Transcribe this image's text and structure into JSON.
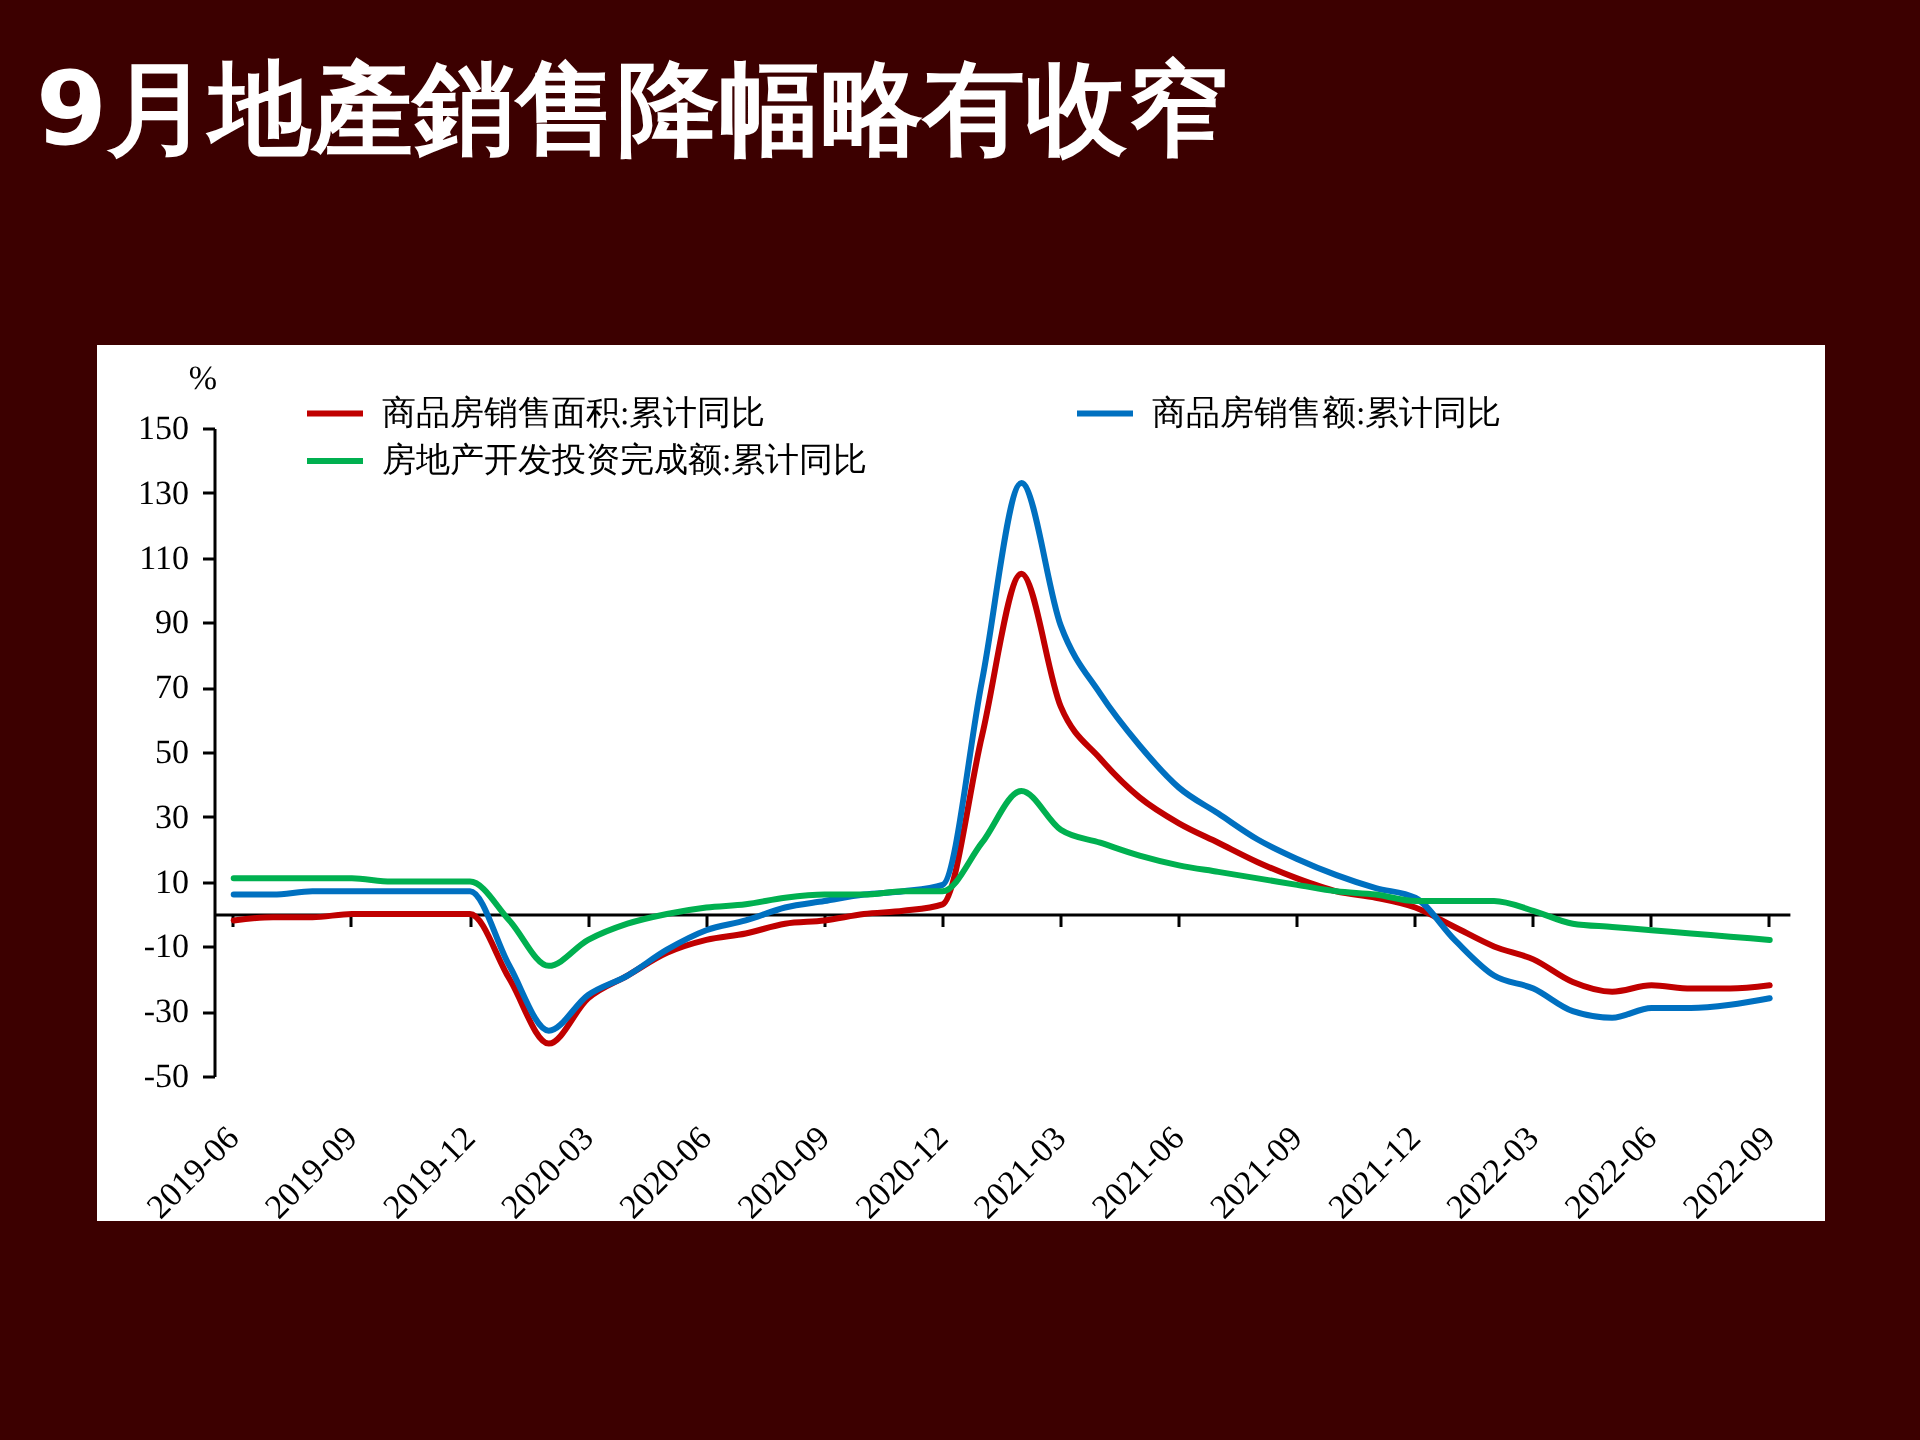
{
  "chart_data": {
    "type": "line",
    "title": "9月地產銷售降幅略有收窄",
    "ylabel": "%",
    "categories": [
      "2019-06",
      null,
      null,
      "2019-09",
      null,
      null,
      "2019-12",
      null,
      null,
      "2020-03",
      null,
      null,
      "2020-06",
      null,
      null,
      "2020-09",
      null,
      null,
      "2020-12",
      null,
      null,
      "2021-03",
      null,
      null,
      "2021-06",
      null,
      null,
      "2021-09",
      null,
      null,
      "2021-12",
      null,
      null,
      "2022-03",
      null,
      null,
      "2022-06",
      null,
      null,
      "2022-09"
    ],
    "series": [
      {
        "name": "商品房销售面积:累计同比",
        "color": "#c00000",
        "values": [
          -2,
          -1,
          -1,
          0,
          0,
          0,
          0,
          -20,
          -40,
          -26,
          -19,
          -12,
          -8,
          -6,
          -3,
          -2,
          0,
          1,
          3,
          55,
          105,
          64,
          48,
          36,
          28,
          22,
          16,
          11,
          7,
          5,
          2,
          -4,
          -10,
          -14,
          -21,
          -24,
          -22,
          -23,
          -23,
          -22
        ]
      },
      {
        "name": "商品房销售额:累计同比",
        "color": "#0070c0",
        "values": [
          6,
          6,
          7,
          7,
          7,
          7,
          7,
          -16,
          -36,
          -25,
          -19,
          -11,
          -5,
          -2,
          2,
          4,
          6,
          7,
          9,
          72,
          133,
          89,
          68,
          52,
          39,
          31,
          23,
          17,
          12,
          8,
          5,
          -8,
          -19,
          -23,
          -30,
          -32,
          -29,
          -29,
          -28,
          -26
        ]
      },
      {
        "name": "房地产开发投资完成额:累计同比",
        "color": "#00b050",
        "values": [
          11,
          11,
          11,
          11,
          10,
          10,
          10,
          -2,
          -16,
          -8,
          -3,
          0,
          2,
          3,
          5,
          6,
          6,
          7,
          7,
          22,
          38,
          26,
          22,
          18,
          15,
          13,
          11,
          9,
          7,
          6,
          4,
          4,
          4,
          1,
          -3,
          -4,
          -5,
          -6,
          -7,
          -8
        ]
      }
    ],
    "ylim": [
      -50,
      150
    ],
    "yticks": [
      -50,
      -30,
      -10,
      10,
      30,
      50,
      70,
      90,
      110,
      130,
      150
    ],
    "legend": "top"
  }
}
